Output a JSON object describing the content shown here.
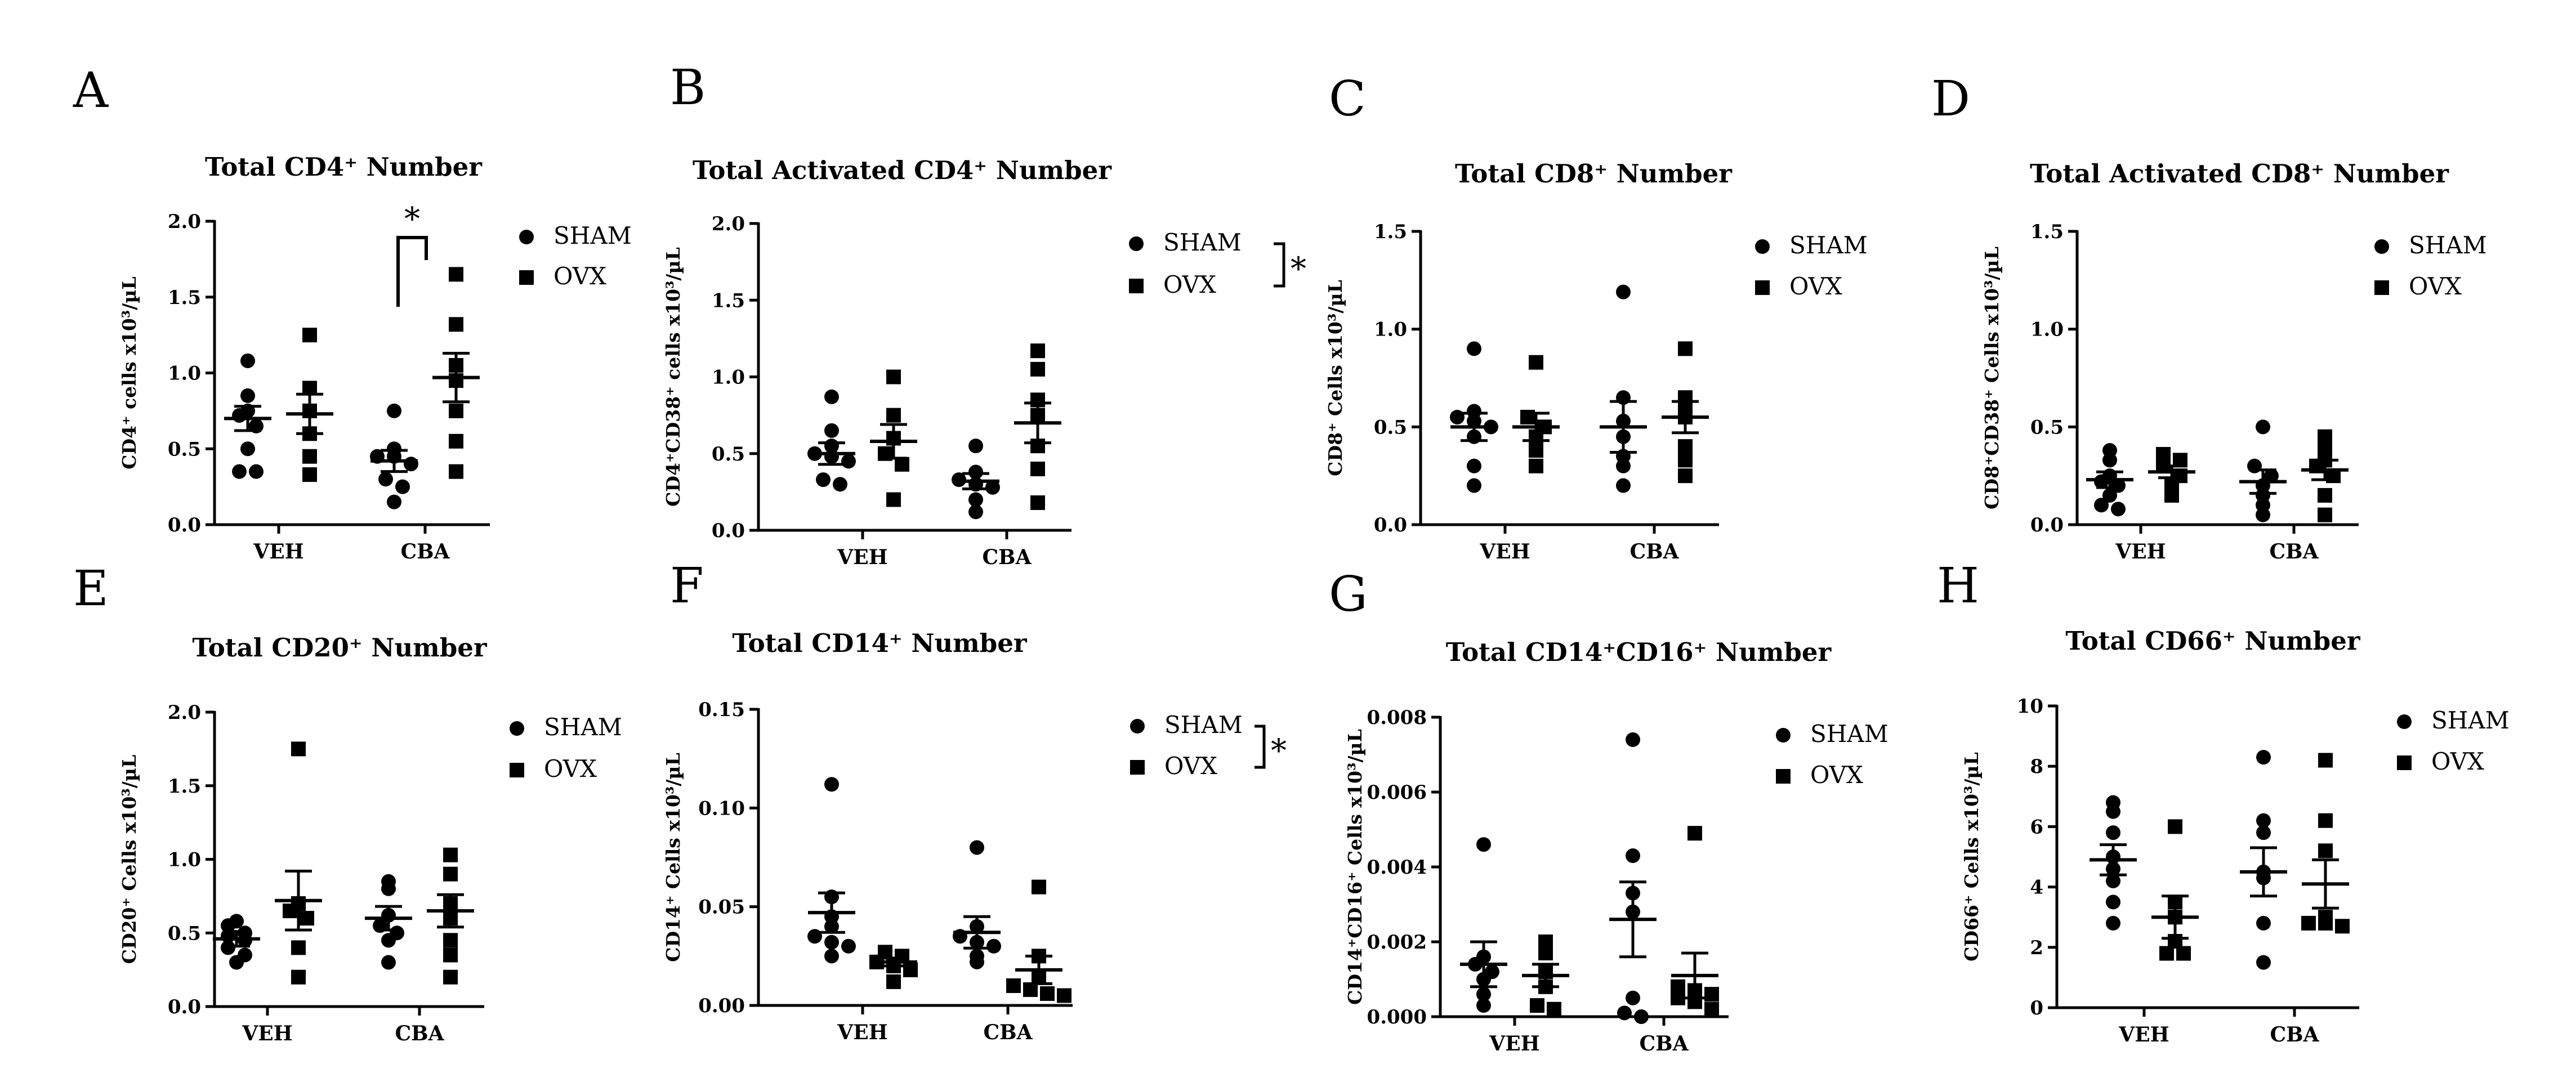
{
  "figure": {
    "panels": [
      {
        "letter": "A",
        "title": "Total CD4⁺ Number",
        "ylabel": "CD4⁺ cells x10³/µL",
        "legend": {
          "items": [
            "SHAM",
            "OVX"
          ]
        },
        "significance": "*"
      },
      {
        "letter": "B",
        "title": "Total Activated CD4⁺ Number",
        "ylabel": "CD4⁺CD38⁺ cells x10³/µL",
        "legend": {
          "items": [
            "SHAM",
            "OVX"
          ],
          "significance": "*"
        }
      },
      {
        "letter": "C",
        "title": "Total CD8⁺ Number",
        "ylabel": "CD8⁺ Cells x10³/µL",
        "legend": {
          "items": [
            "SHAM",
            "OVX"
          ]
        }
      },
      {
        "letter": "D",
        "title": "Total Activated CD8⁺ Number",
        "ylabel": "CD8⁺CD38⁺ Cells x10³/µL",
        "legend": {
          "items": [
            "SHAM",
            "OVX"
          ]
        }
      },
      {
        "letter": "E",
        "title": "Total CD20⁺ Number",
        "ylabel": "CD20⁺ Cells x10³/µL",
        "legend": {
          "items": [
            "SHAM",
            "OVX"
          ]
        }
      },
      {
        "letter": "F",
        "title": "Total CD14⁺ Number",
        "ylabel": "CD14⁺ Cells x10³/µL",
        "legend": {
          "items": [
            "SHAM",
            "OVX"
          ],
          "significance": "*"
        }
      },
      {
        "letter": "G",
        "title": "Total CD14⁺CD16⁺ Number",
        "ylabel": "CD14⁺CD16⁺ Cells x10³/µL",
        "legend": {
          "items": [
            "SHAM",
            "OVX"
          ]
        }
      },
      {
        "letter": "H",
        "title": "Total CD66⁺ Number",
        "ylabel": "CD66⁺ Cells x10³/µL",
        "legend": {
          "items": [
            "SHAM",
            "OVX"
          ]
        }
      }
    ]
  },
  "chart_data": [
    {
      "type": "scatter",
      "title": "Total CD4⁺ Number",
      "ylabel": "CD4⁺ cells x10³/µL",
      "ylim": [
        0,
        2.0
      ],
      "yticks": [
        "0.0",
        "0.5",
        "1.0",
        "1.5",
        "2.0"
      ],
      "categories": [
        "VEH",
        "CBA"
      ],
      "series": [
        {
          "name": "SHAM",
          "marker": "circle",
          "points": [
            [
              1.08,
              0.85,
              0.75,
              0.72,
              0.65,
              0.5,
              0.35,
              0.35
            ],
            [
              0.75,
              0.5,
              0.45,
              0.45,
              0.4,
              0.3,
              0.25,
              0.15
            ]
          ],
          "mean": [
            0.7,
            0.42
          ],
          "sem": [
            0.08,
            0.07
          ]
        },
        {
          "name": "OVX",
          "marker": "square",
          "points": [
            [
              1.25,
              0.9,
              0.75,
              0.6,
              0.45,
              0.33
            ],
            [
              1.65,
              1.32,
              1.05,
              0.95,
              0.75,
              0.55,
              0.35
            ]
          ],
          "mean": [
            0.73,
            0.97
          ],
          "sem": [
            0.13,
            0.16
          ]
        }
      ],
      "significance": {
        "label": "*",
        "between": "CBA SHAM vs OVX"
      }
    },
    {
      "type": "scatter",
      "title": "Total Activated CD4⁺ Number",
      "ylabel": "CD4⁺CD38⁺ cells x10³/µL",
      "ylim": [
        0,
        2.0
      ],
      "yticks": [
        "0.0",
        "0.5",
        "1.0",
        "1.5",
        "2.0"
      ],
      "categories": [
        "VEH",
        "CBA"
      ],
      "series": [
        {
          "name": "SHAM",
          "marker": "circle",
          "points": [
            [
              0.87,
              0.65,
              0.55,
              0.5,
              0.48,
              0.45,
              0.33,
              0.3
            ],
            [
              0.55,
              0.38,
              0.33,
              0.3,
              0.28,
              0.2,
              0.12
            ]
          ],
          "mean": [
            0.5,
            0.32
          ],
          "sem": [
            0.07,
            0.05
          ]
        },
        {
          "name": "OVX",
          "marker": "square",
          "points": [
            [
              1.0,
              0.75,
              0.6,
              0.5,
              0.43,
              0.2
            ],
            [
              1.17,
              1.05,
              0.85,
              0.75,
              0.55,
              0.4,
              0.18
            ]
          ],
          "mean": [
            0.58,
            0.7
          ],
          "sem": [
            0.11,
            0.13
          ]
        }
      ],
      "significance": {
        "label": "*",
        "between": "SHAM vs OVX"
      }
    },
    {
      "type": "scatter",
      "title": "Total CD8⁺ Number",
      "ylabel": "CD8⁺ Cells x10³/µL",
      "ylim": [
        0,
        1.5
      ],
      "yticks": [
        "0.0",
        "0.5",
        "1.0",
        "1.5"
      ],
      "categories": [
        "VEH",
        "CBA"
      ],
      "series": [
        {
          "name": "SHAM",
          "marker": "circle",
          "points": [
            [
              0.9,
              0.58,
              0.55,
              0.53,
              0.5,
              0.45,
              0.3,
              0.2
            ],
            [
              1.19,
              0.65,
              0.53,
              0.45,
              0.35,
              0.3,
              0.2
            ]
          ],
          "mean": [
            0.5,
            0.5
          ],
          "sem": [
            0.07,
            0.13
          ]
        },
        {
          "name": "OVX",
          "marker": "square",
          "points": [
            [
              0.83,
              0.55,
              0.5,
              0.45,
              0.38,
              0.3
            ],
            [
              0.9,
              0.65,
              0.58,
              0.55,
              0.4,
              0.33,
              0.25
            ]
          ],
          "mean": [
            0.5,
            0.55
          ],
          "sem": [
            0.07,
            0.08
          ]
        }
      ]
    },
    {
      "type": "scatter",
      "title": "Total Activated CD8⁺ Number",
      "ylabel": "CD8⁺CD38⁺ Cells x10³/µL",
      "ylim": [
        0,
        1.5
      ],
      "yticks": [
        "0.0",
        "0.5",
        "1.0",
        "1.5"
      ],
      "categories": [
        "VEH",
        "CBA"
      ],
      "series": [
        {
          "name": "SHAM",
          "marker": "circle",
          "points": [
            [
              0.38,
              0.33,
              0.25,
              0.22,
              0.2,
              0.15,
              0.1,
              0.08
            ],
            [
              0.5,
              0.3,
              0.25,
              0.2,
              0.15,
              0.1,
              0.05
            ]
          ],
          "mean": [
            0.23,
            0.22
          ],
          "sem": [
            0.04,
            0.06
          ]
        },
        {
          "name": "OVX",
          "marker": "square",
          "points": [
            [
              0.36,
              0.33,
              0.3,
              0.25,
              0.2,
              0.15
            ],
            [
              0.45,
              0.38,
              0.33,
              0.3,
              0.25,
              0.15,
              0.05
            ]
          ],
          "mean": [
            0.27,
            0.28
          ],
          "sem": [
            0.03,
            0.05
          ]
        }
      ]
    },
    {
      "type": "scatter",
      "title": "Total CD20⁺ Number",
      "ylabel": "CD20⁺ Cells x10³/µL",
      "ylim": [
        0,
        2.0
      ],
      "yticks": [
        "0.0",
        "0.5",
        "1.0",
        "1.5",
        "2.0"
      ],
      "categories": [
        "VEH",
        "CBA"
      ],
      "series": [
        {
          "name": "SHAM",
          "marker": "circle",
          "points": [
            [
              0.58,
              0.55,
              0.5,
              0.48,
              0.45,
              0.4,
              0.35,
              0.3
            ],
            [
              0.85,
              0.8,
              0.62,
              0.55,
              0.5,
              0.45,
              0.3
            ]
          ],
          "mean": [
            0.46,
            0.6
          ],
          "sem": [
            0.05,
            0.08
          ]
        },
        {
          "name": "OVX",
          "marker": "square",
          "points": [
            [
              1.75,
              0.7,
              0.65,
              0.6,
              0.4,
              0.2
            ],
            [
              1.03,
              0.9,
              0.7,
              0.6,
              0.45,
              0.35,
              0.2
            ]
          ],
          "mean": [
            0.72,
            0.65
          ],
          "sem": [
            0.2,
            0.11
          ]
        }
      ]
    },
    {
      "type": "scatter",
      "title": "Total CD14⁺ Number",
      "ylabel": "CD14⁺ Cells x10³/µL",
      "ylim": [
        0,
        0.15
      ],
      "yticks": [
        "0.00",
        "0.05",
        "0.10",
        "0.15"
      ],
      "categories": [
        "VEH",
        "CBA"
      ],
      "series": [
        {
          "name": "SHAM",
          "marker": "circle",
          "points": [
            [
              0.112,
              0.055,
              0.045,
              0.04,
              0.035,
              0.032,
              0.03,
              0.025
            ],
            [
              0.08,
              0.04,
              0.035,
              0.032,
              0.03,
              0.025,
              0.022
            ]
          ],
          "mean": [
            0.047,
            0.037
          ],
          "sem": [
            0.01,
            0.008
          ]
        },
        {
          "name": "OVX",
          "marker": "square",
          "points": [
            [
              0.027,
              0.025,
              0.022,
              0.02,
              0.018,
              0.012
            ],
            [
              0.06,
              0.025,
              0.015,
              0.01,
              0.008,
              0.006,
              0.005
            ]
          ],
          "mean": [
            0.022,
            0.018
          ],
          "sem": [
            0.002,
            0.007
          ]
        }
      ],
      "significance": {
        "label": "*",
        "between": "SHAM vs OVX"
      }
    },
    {
      "type": "scatter",
      "title": "Total CD14⁺CD16⁺ Number",
      "ylabel": "CD14⁺CD16⁺ Cells x10³/µL",
      "ylim": [
        0,
        0.008
      ],
      "yticks": [
        "0.000",
        "0.002",
        "0.004",
        "0.006",
        "0.008"
      ],
      "categories": [
        "VEH",
        "CBA"
      ],
      "series": [
        {
          "name": "SHAM",
          "marker": "circle",
          "points": [
            [
              0.0046,
              0.0016,
              0.0014,
              0.0012,
              0.001,
              0.0006,
              0.0003
            ],
            [
              0.0074,
              0.0043,
              0.0033,
              0.0028,
              0.0005,
              0.0001,
              0.0
            ]
          ],
          "mean": [
            0.0014,
            0.0026
          ],
          "sem": [
            0.0006,
            0.001
          ]
        },
        {
          "name": "OVX",
          "marker": "square",
          "points": [
            [
              0.002,
              0.0017,
              0.0012,
              0.0008,
              0.0003,
              0.0002
            ],
            [
              0.0049,
              0.0008,
              0.0007,
              0.0006,
              0.0005,
              0.0004,
              0.0002
            ]
          ],
          "mean": [
            0.0011,
            0.0011
          ],
          "sem": [
            0.0003,
            0.0006
          ]
        }
      ]
    },
    {
      "type": "scatter",
      "title": "Total CD66⁺ Number",
      "ylabel": "CD66⁺ Cells x10³/µL",
      "ylim": [
        0,
        10
      ],
      "yticks": [
        "0",
        "2",
        "4",
        "6",
        "8",
        "10"
      ],
      "categories": [
        "VEH",
        "CBA"
      ],
      "series": [
        {
          "name": "SHAM",
          "marker": "circle",
          "points": [
            [
              6.8,
              6.5,
              5.8,
              5.0,
              4.6,
              4.2,
              3.5,
              2.8
            ],
            [
              8.3,
              6.2,
              5.8,
              4.5,
              4.3,
              2.8,
              1.5
            ]
          ],
          "mean": [
            4.9,
            4.5
          ],
          "sem": [
            0.5,
            0.8
          ]
        },
        {
          "name": "OVX",
          "marker": "square",
          "points": [
            [
              6.0,
              3.5,
              3.0,
              2.2,
              1.8,
              1.8
            ],
            [
              8.2,
              6.2,
              5.2,
              3.0,
              2.8,
              2.8,
              2.7
            ]
          ],
          "mean": [
            3.0,
            4.1
          ],
          "sem": [
            0.7,
            0.8
          ]
        }
      ]
    }
  ]
}
